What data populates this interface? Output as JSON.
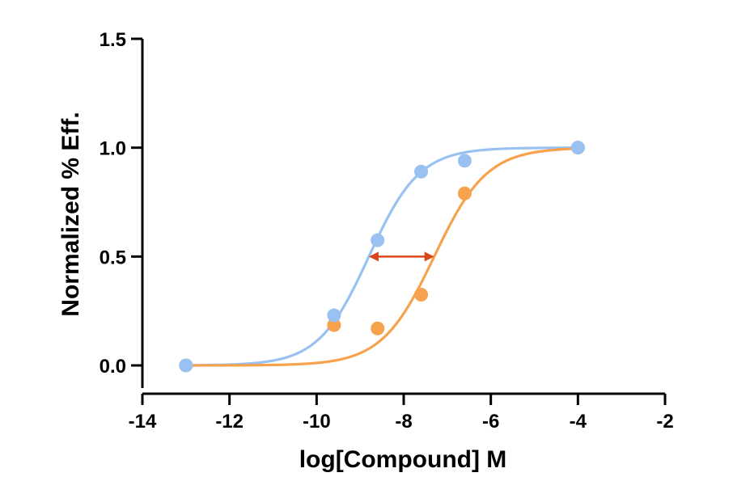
{
  "chart_data": {
    "type": "scatter",
    "title": "",
    "xlabel": "log[Compound] M",
    "ylabel": "Normalized % Eff.",
    "xlim": [
      -14,
      -2
    ],
    "ylim": [
      0,
      1.5
    ],
    "x_ticks": [
      -14,
      -12,
      -10,
      -8,
      -6,
      -4,
      -2
    ],
    "x_tick_labels": [
      "-14",
      "-12",
      "-10",
      "-8",
      "-6",
      "-4",
      "-2"
    ],
    "y_ticks": [
      0,
      0.5,
      1.0,
      1.5
    ],
    "y_tick_labels": [
      "0.0",
      "0.5",
      "1.0",
      "1.5"
    ],
    "grid": false,
    "legend": "none",
    "series": [
      {
        "color": "#99c2f2",
        "points": [
          {
            "x": -13,
            "y": 0.0
          },
          {
            "x": -9.6,
            "y": 0.23
          },
          {
            "x": -8.6,
            "y": 0.575
          },
          {
            "x": -7.6,
            "y": 0.89
          },
          {
            "x": -6.6,
            "y": 0.94
          },
          {
            "x": -4,
            "y": 1.0
          }
        ],
        "fit": {
          "model": "sigmoidal dose-response",
          "bottom": 0.0,
          "top": 1.0,
          "logEC50": -8.8,
          "hill": 0.75
        }
      },
      {
        "color": "#f7a24c",
        "points": [
          {
            "x": -13,
            "y": 0.0
          },
          {
            "x": -9.6,
            "y": 0.185
          },
          {
            "x": -8.6,
            "y": 0.17
          },
          {
            "x": -7.6,
            "y": 0.325
          },
          {
            "x": -6.6,
            "y": 0.79
          },
          {
            "x": -4,
            "y": 1.0
          }
        ],
        "fit": {
          "model": "sigmoidal dose-response",
          "bottom": 0.0,
          "top": 1.0,
          "logEC50": -7.3,
          "hill": 0.72
        }
      }
    ],
    "annotations": [
      {
        "type": "double-arrow",
        "x_from": -8.8,
        "x_to": -7.3,
        "y": 0.5,
        "color": "#d9471a"
      }
    ]
  }
}
